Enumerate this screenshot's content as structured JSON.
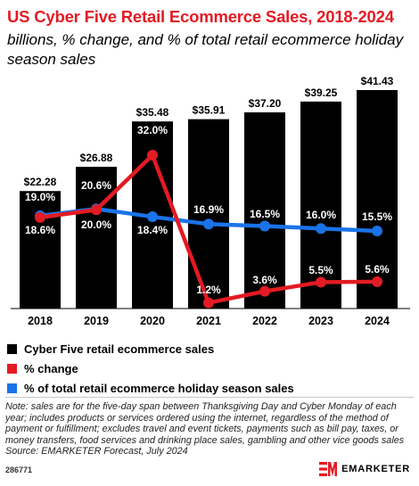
{
  "header": {
    "title": "US Cyber Five Retail Ecommerce Sales, 2018-2024",
    "subtitle": "billions, % change, and % of total retail ecommerce holiday season sales"
  },
  "colors": {
    "title": "#e31b23",
    "bars": "#000000",
    "pct_change": "#e31b23",
    "pct_total": "#1a73e8"
  },
  "chart_data": {
    "type": "bar",
    "categories": [
      "2018",
      "2019",
      "2020",
      "2021",
      "2022",
      "2023",
      "2024"
    ],
    "series": [
      {
        "name": "Cyber Five retail ecommerce sales",
        "type": "bar",
        "values": [
          22.28,
          26.88,
          35.48,
          35.91,
          37.2,
          39.25,
          41.43
        ],
        "labels": [
          "$22.28",
          "$26.88",
          "$35.48",
          "$35.91",
          "$37.20",
          "$39.25",
          "$41.43"
        ]
      },
      {
        "name": "% change",
        "type": "line",
        "values": [
          19.0,
          20.6,
          32.0,
          1.2,
          3.6,
          5.5,
          5.6
        ],
        "labels": [
          "19.0%",
          "20.6%",
          "32.0%",
          "1.2%",
          "3.6%",
          "5.5%",
          "5.6%"
        ]
      },
      {
        "name": "% of total retail ecommerce holiday season sales",
        "type": "line",
        "values": [
          18.6,
          20.0,
          18.4,
          16.9,
          16.5,
          16.0,
          15.5
        ],
        "labels": [
          "18.6%",
          "20.0%",
          "18.4%",
          "16.9%",
          "16.5%",
          "16.0%",
          "15.5%"
        ]
      }
    ],
    "legend_position": "bottom",
    "grid": false
  },
  "legend": [
    {
      "label": "Cyber Five retail ecommerce sales",
      "color": "#000000"
    },
    {
      "label": "% change",
      "color": "#e31b23"
    },
    {
      "label": "% of total retail ecommerce holiday season sales",
      "color": "#1a73e8"
    }
  ],
  "note": "Note: sales are for the five-day span between Thanksgiving Day and Cyber Monday of each year; includes products or services ordered using the internet, regardless of the method of payment or fulfillment; excludes travel and event tickets, payments such as bill pay, taxes, or money transfers, food services and drinking place sales, gambling and other vice goods sales",
  "source": "Source: EMARKETER Forecast, July 2024",
  "footer": {
    "chart_id": "286771",
    "brand": "EMARKETER"
  }
}
